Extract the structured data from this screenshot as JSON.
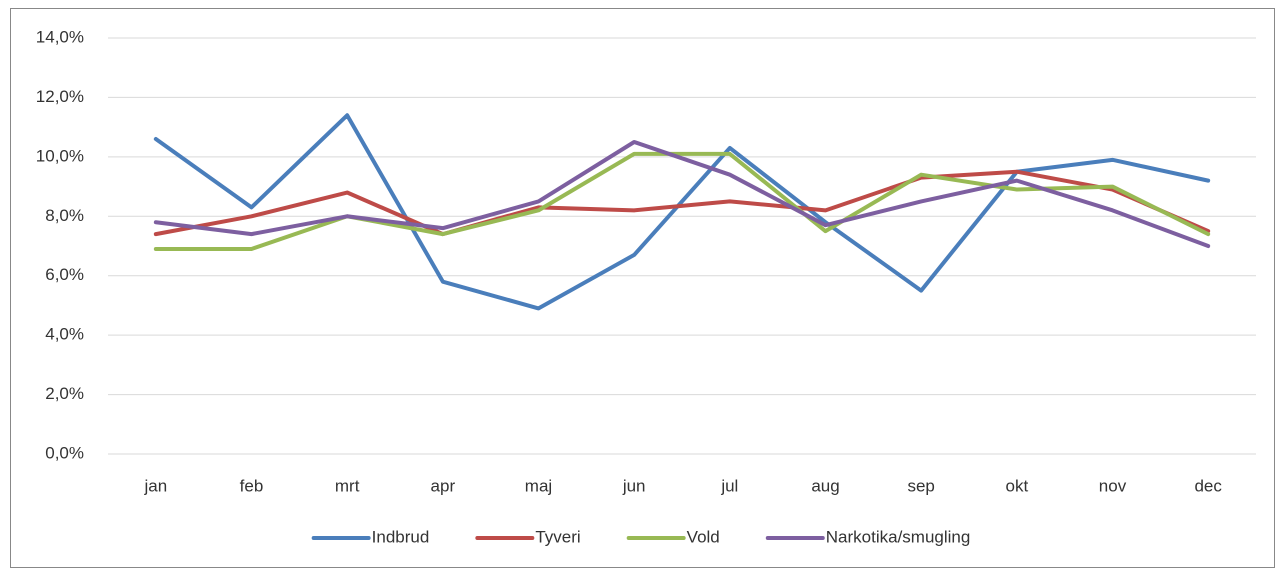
{
  "chart_data": {
    "type": "line",
    "categories": [
      "jan",
      "feb",
      "mrt",
      "apr",
      "maj",
      "jun",
      "jul",
      "aug",
      "sep",
      "okt",
      "nov",
      "dec"
    ],
    "series": [
      {
        "name": "Indbrud",
        "color": "#4a7ebb",
        "values": [
          10.6,
          8.3,
          11.4,
          5.8,
          4.9,
          6.7,
          10.3,
          7.8,
          5.5,
          9.5,
          9.9,
          9.2
        ]
      },
      {
        "name": "Tyveri",
        "color": "#be4b48",
        "values": [
          7.4,
          8.0,
          8.8,
          7.4,
          8.3,
          8.2,
          8.5,
          8.2,
          9.3,
          9.5,
          8.9,
          7.5
        ]
      },
      {
        "name": "Vold",
        "color": "#98b954",
        "values": [
          6.9,
          6.9,
          8.0,
          7.4,
          8.2,
          10.1,
          10.1,
          7.5,
          9.4,
          8.9,
          9.0,
          7.4
        ]
      },
      {
        "name": "Narkotika/smugling",
        "color": "#7d5fa0",
        "values": [
          7.8,
          7.4,
          8.0,
          7.6,
          8.5,
          10.5,
          9.4,
          7.7,
          8.5,
          9.2,
          8.2,
          7.0
        ]
      }
    ],
    "ylim": [
      0,
      14
    ],
    "yticks": [
      {
        "value": 0,
        "label": "0,0%"
      },
      {
        "value": 2,
        "label": "2,0%"
      },
      {
        "value": 4,
        "label": "4,0%"
      },
      {
        "value": 6,
        "label": "6,0%"
      },
      {
        "value": 8,
        "label": "8,0%"
      },
      {
        "value": 10,
        "label": "10,0%"
      },
      {
        "value": 12,
        "label": "12,0%"
      },
      {
        "value": 14,
        "label": "14,0%"
      }
    ],
    "grid": true,
    "legend": "bottom"
  }
}
